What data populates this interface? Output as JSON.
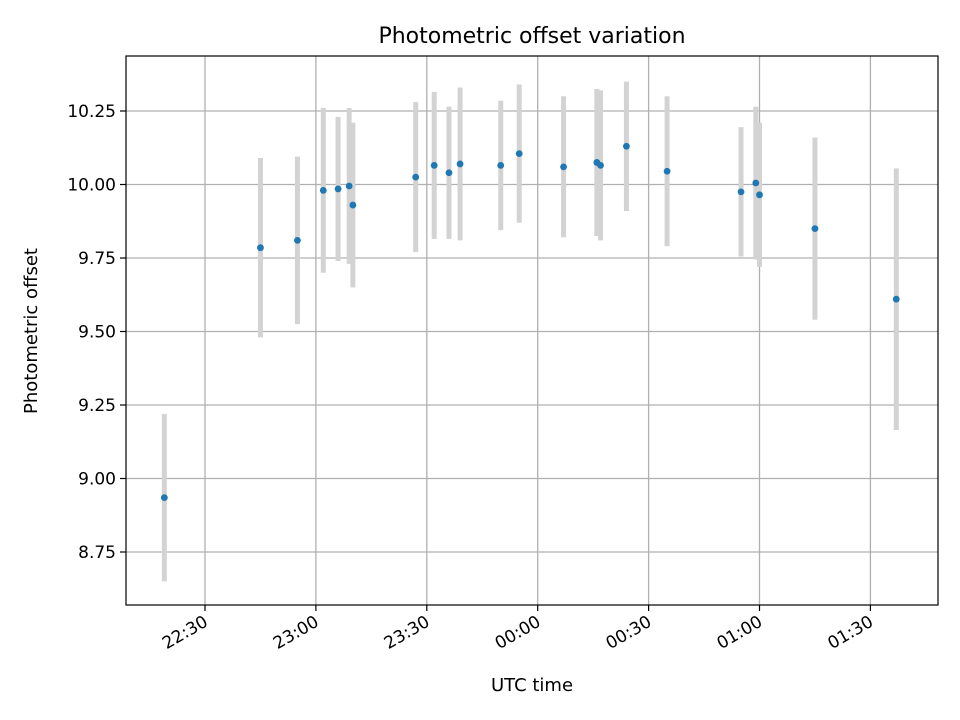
{
  "chart_data": {
    "type": "scatter",
    "title": "Photometric offset variation",
    "xlabel": "UTC time",
    "ylabel": "Photometric offset",
    "x_ticks": [
      "22:30",
      "23:00",
      "23:30",
      "00:00",
      "00:30",
      "01:00",
      "01:30"
    ],
    "y_ticks": [
      "8.75",
      "9.00",
      "9.25",
      "9.50",
      "9.75",
      "10.00",
      "10.25"
    ],
    "grid": true,
    "error_bar_color": "#d3d3d3",
    "point_color": "#1f77b4",
    "points": [
      {
        "x": "22:19",
        "y": 8.935,
        "err": 0.285
      },
      {
        "x": "22:45",
        "y": 9.785,
        "err": 0.305
      },
      {
        "x": "22:55",
        "y": 9.81,
        "err": 0.285
      },
      {
        "x": "23:02",
        "y": 9.98,
        "err": 0.28
      },
      {
        "x": "23:06",
        "y": 9.985,
        "err": 0.245
      },
      {
        "x": "23:09",
        "y": 9.995,
        "err": 0.265
      },
      {
        "x": "23:10",
        "y": 9.93,
        "err": 0.28
      },
      {
        "x": "23:27",
        "y": 10.025,
        "err": 0.255
      },
      {
        "x": "23:32",
        "y": 10.065,
        "err": 0.25
      },
      {
        "x": "23:36",
        "y": 10.04,
        "err": 0.225
      },
      {
        "x": "23:39",
        "y": 10.07,
        "err": 0.26
      },
      {
        "x": "23:50",
        "y": 10.065,
        "err": 0.22
      },
      {
        "x": "23:55",
        "y": 10.105,
        "err": 0.235
      },
      {
        "x": "00:07",
        "y": 10.06,
        "err": 0.24
      },
      {
        "x": "00:16",
        "y": 10.075,
        "err": 0.25
      },
      {
        "x": "00:17",
        "y": 10.065,
        "err": 0.255
      },
      {
        "x": "00:24",
        "y": 10.13,
        "err": 0.22
      },
      {
        "x": "00:35",
        "y": 10.045,
        "err": 0.255
      },
      {
        "x": "00:55",
        "y": 9.975,
        "err": 0.22
      },
      {
        "x": "00:59",
        "y": 10.005,
        "err": 0.26
      },
      {
        "x": "01:00",
        "y": 9.965,
        "err": 0.245
      },
      {
        "x": "01:15",
        "y": 9.85,
        "err": 0.31
      },
      {
        "x": "01:37",
        "y": 9.61,
        "err": 0.445
      }
    ]
  }
}
